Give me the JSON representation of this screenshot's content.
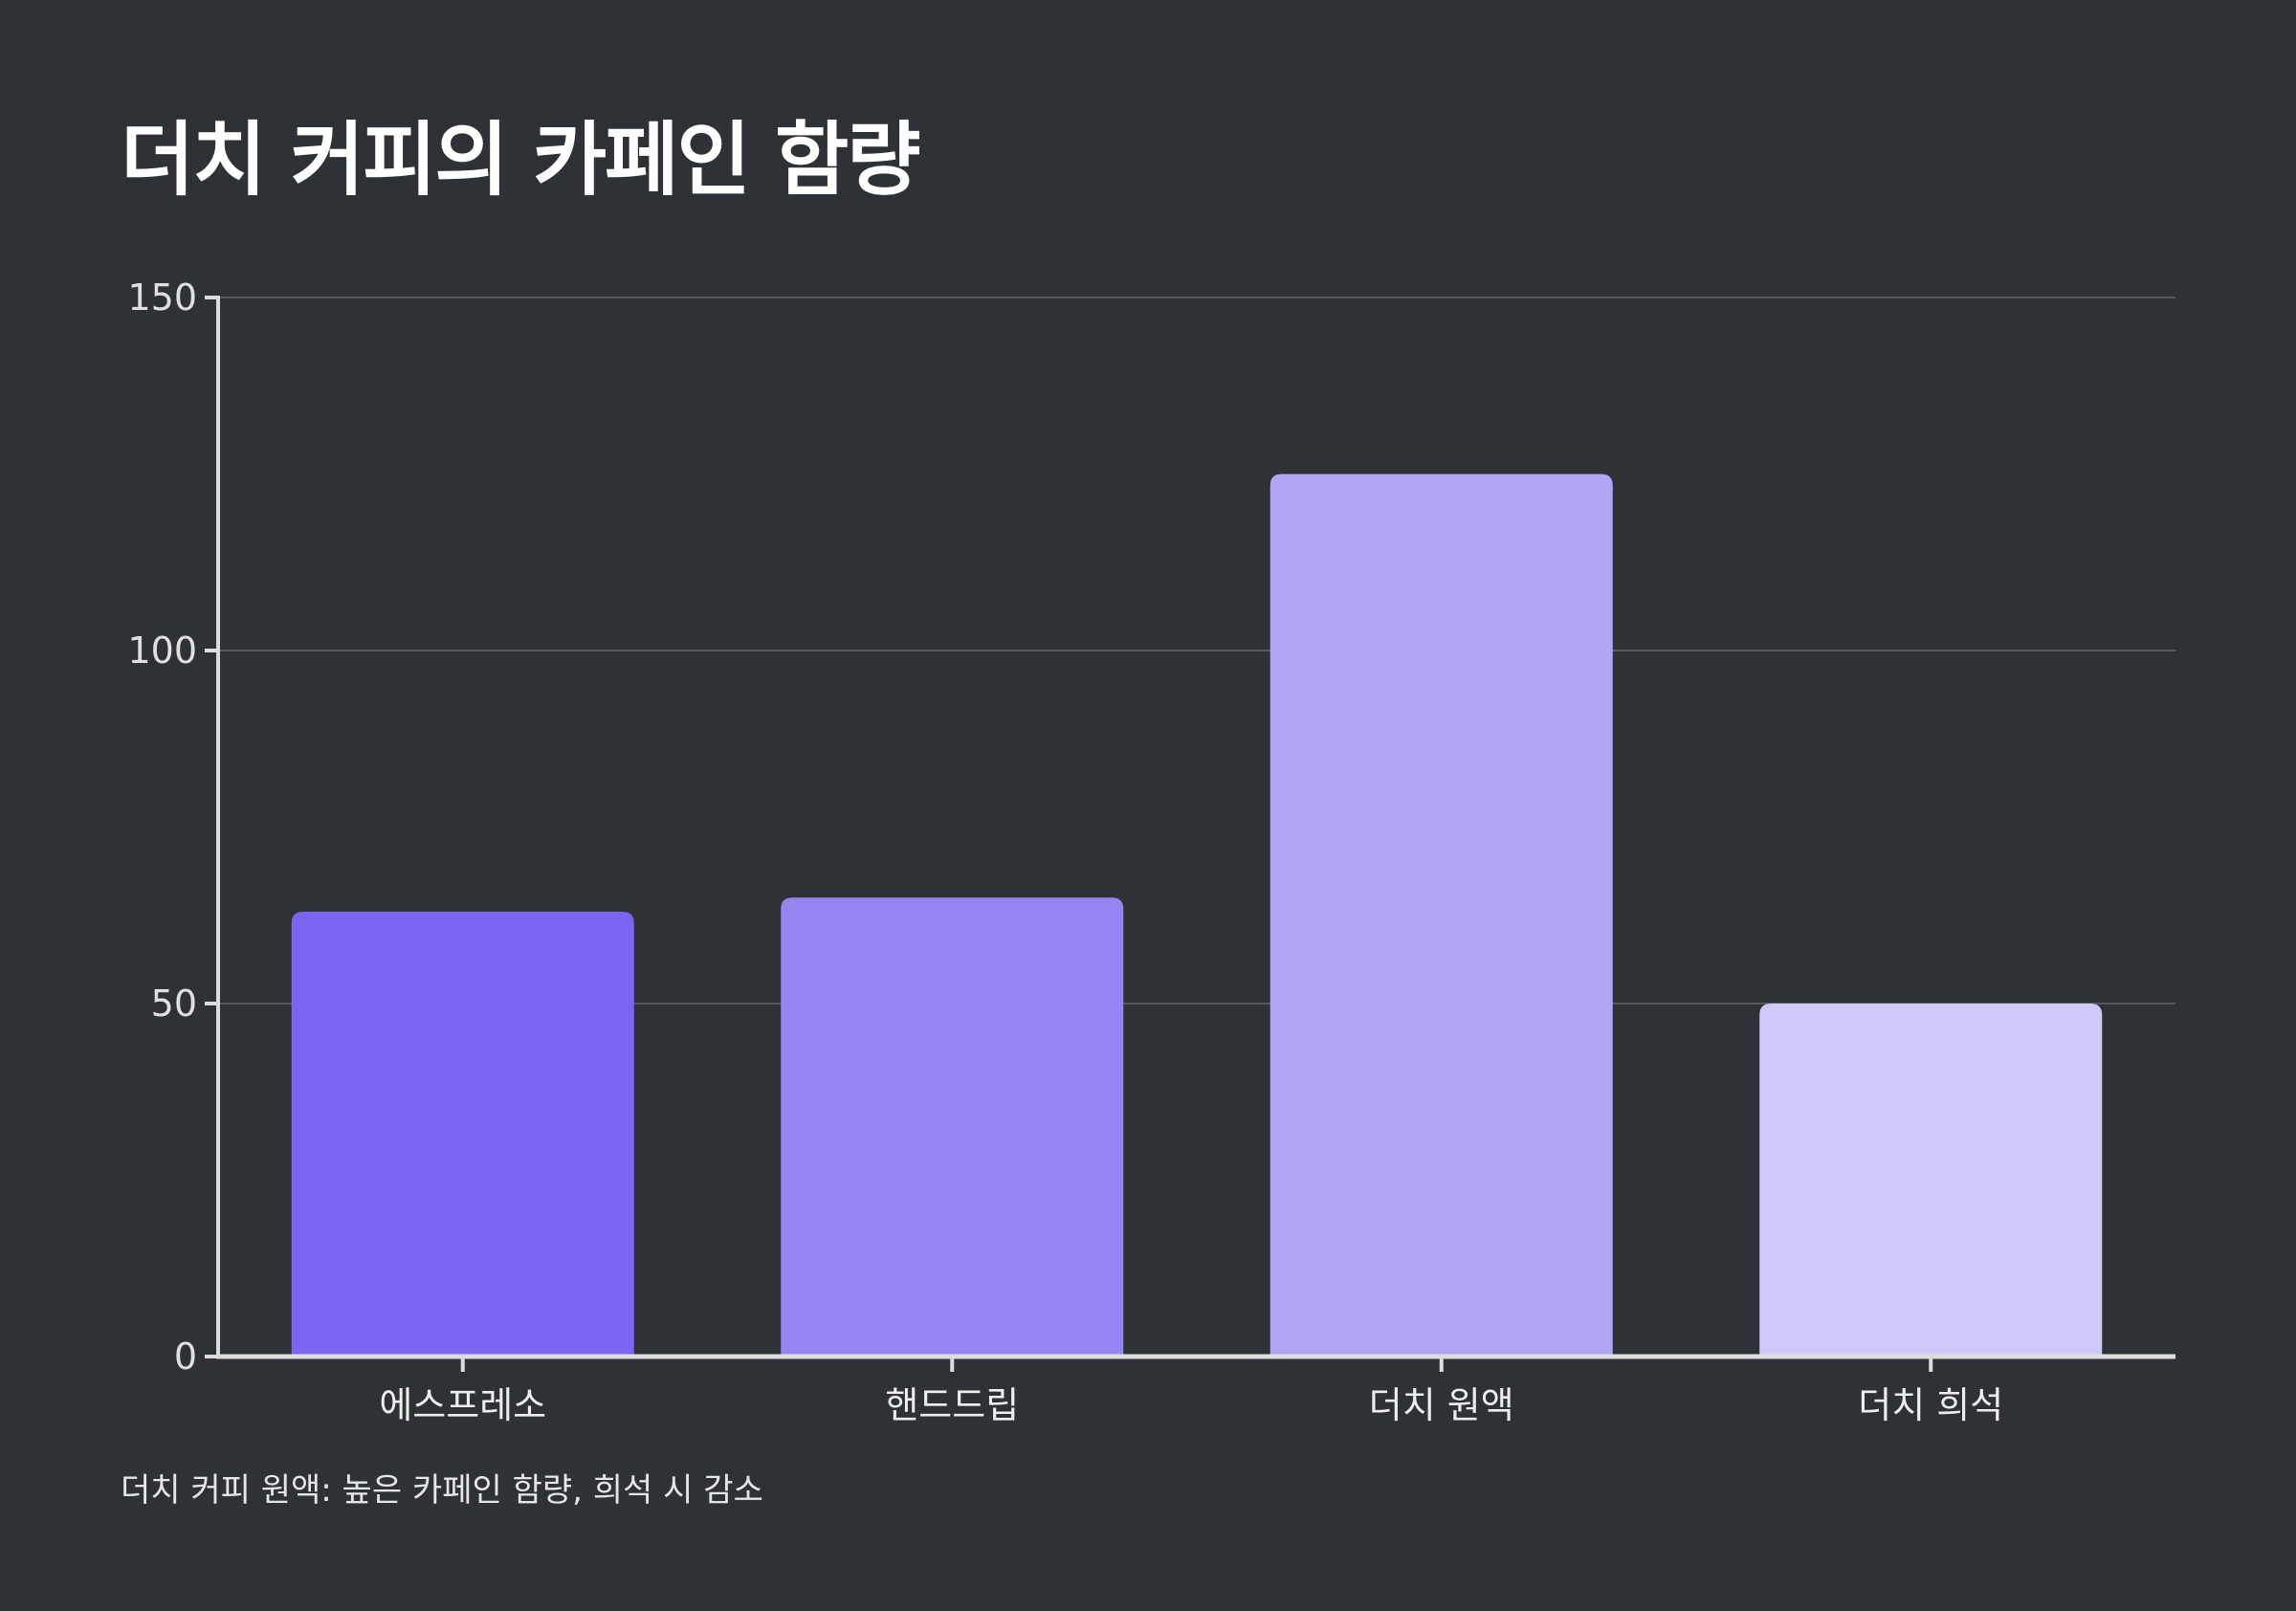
{
  "chart_data": {
    "type": "bar",
    "title": "더치 커피의 카페인 함량",
    "xlabel": "",
    "ylabel": "",
    "categories": [
      "에스프레소",
      "핸드드립",
      "더치 원액",
      "더치 희석"
    ],
    "values": [
      63,
      65,
      125,
      50
    ],
    "bar_colors": [
      "#7b64ef",
      "#9685f0",
      "#b2a5f5",
      "#d0c8f9"
    ],
    "ylim": [
      0,
      150
    ],
    "yticks": [
      0,
      50,
      100,
      150
    ],
    "grid": true,
    "legend": "none",
    "footnote": "더치 커피 원액: 높은 카페인 함량, 희석 시 감소"
  },
  "colors": {
    "background": "#2e3135",
    "gridline": "#55585d",
    "axis": "#dcdcdc"
  }
}
